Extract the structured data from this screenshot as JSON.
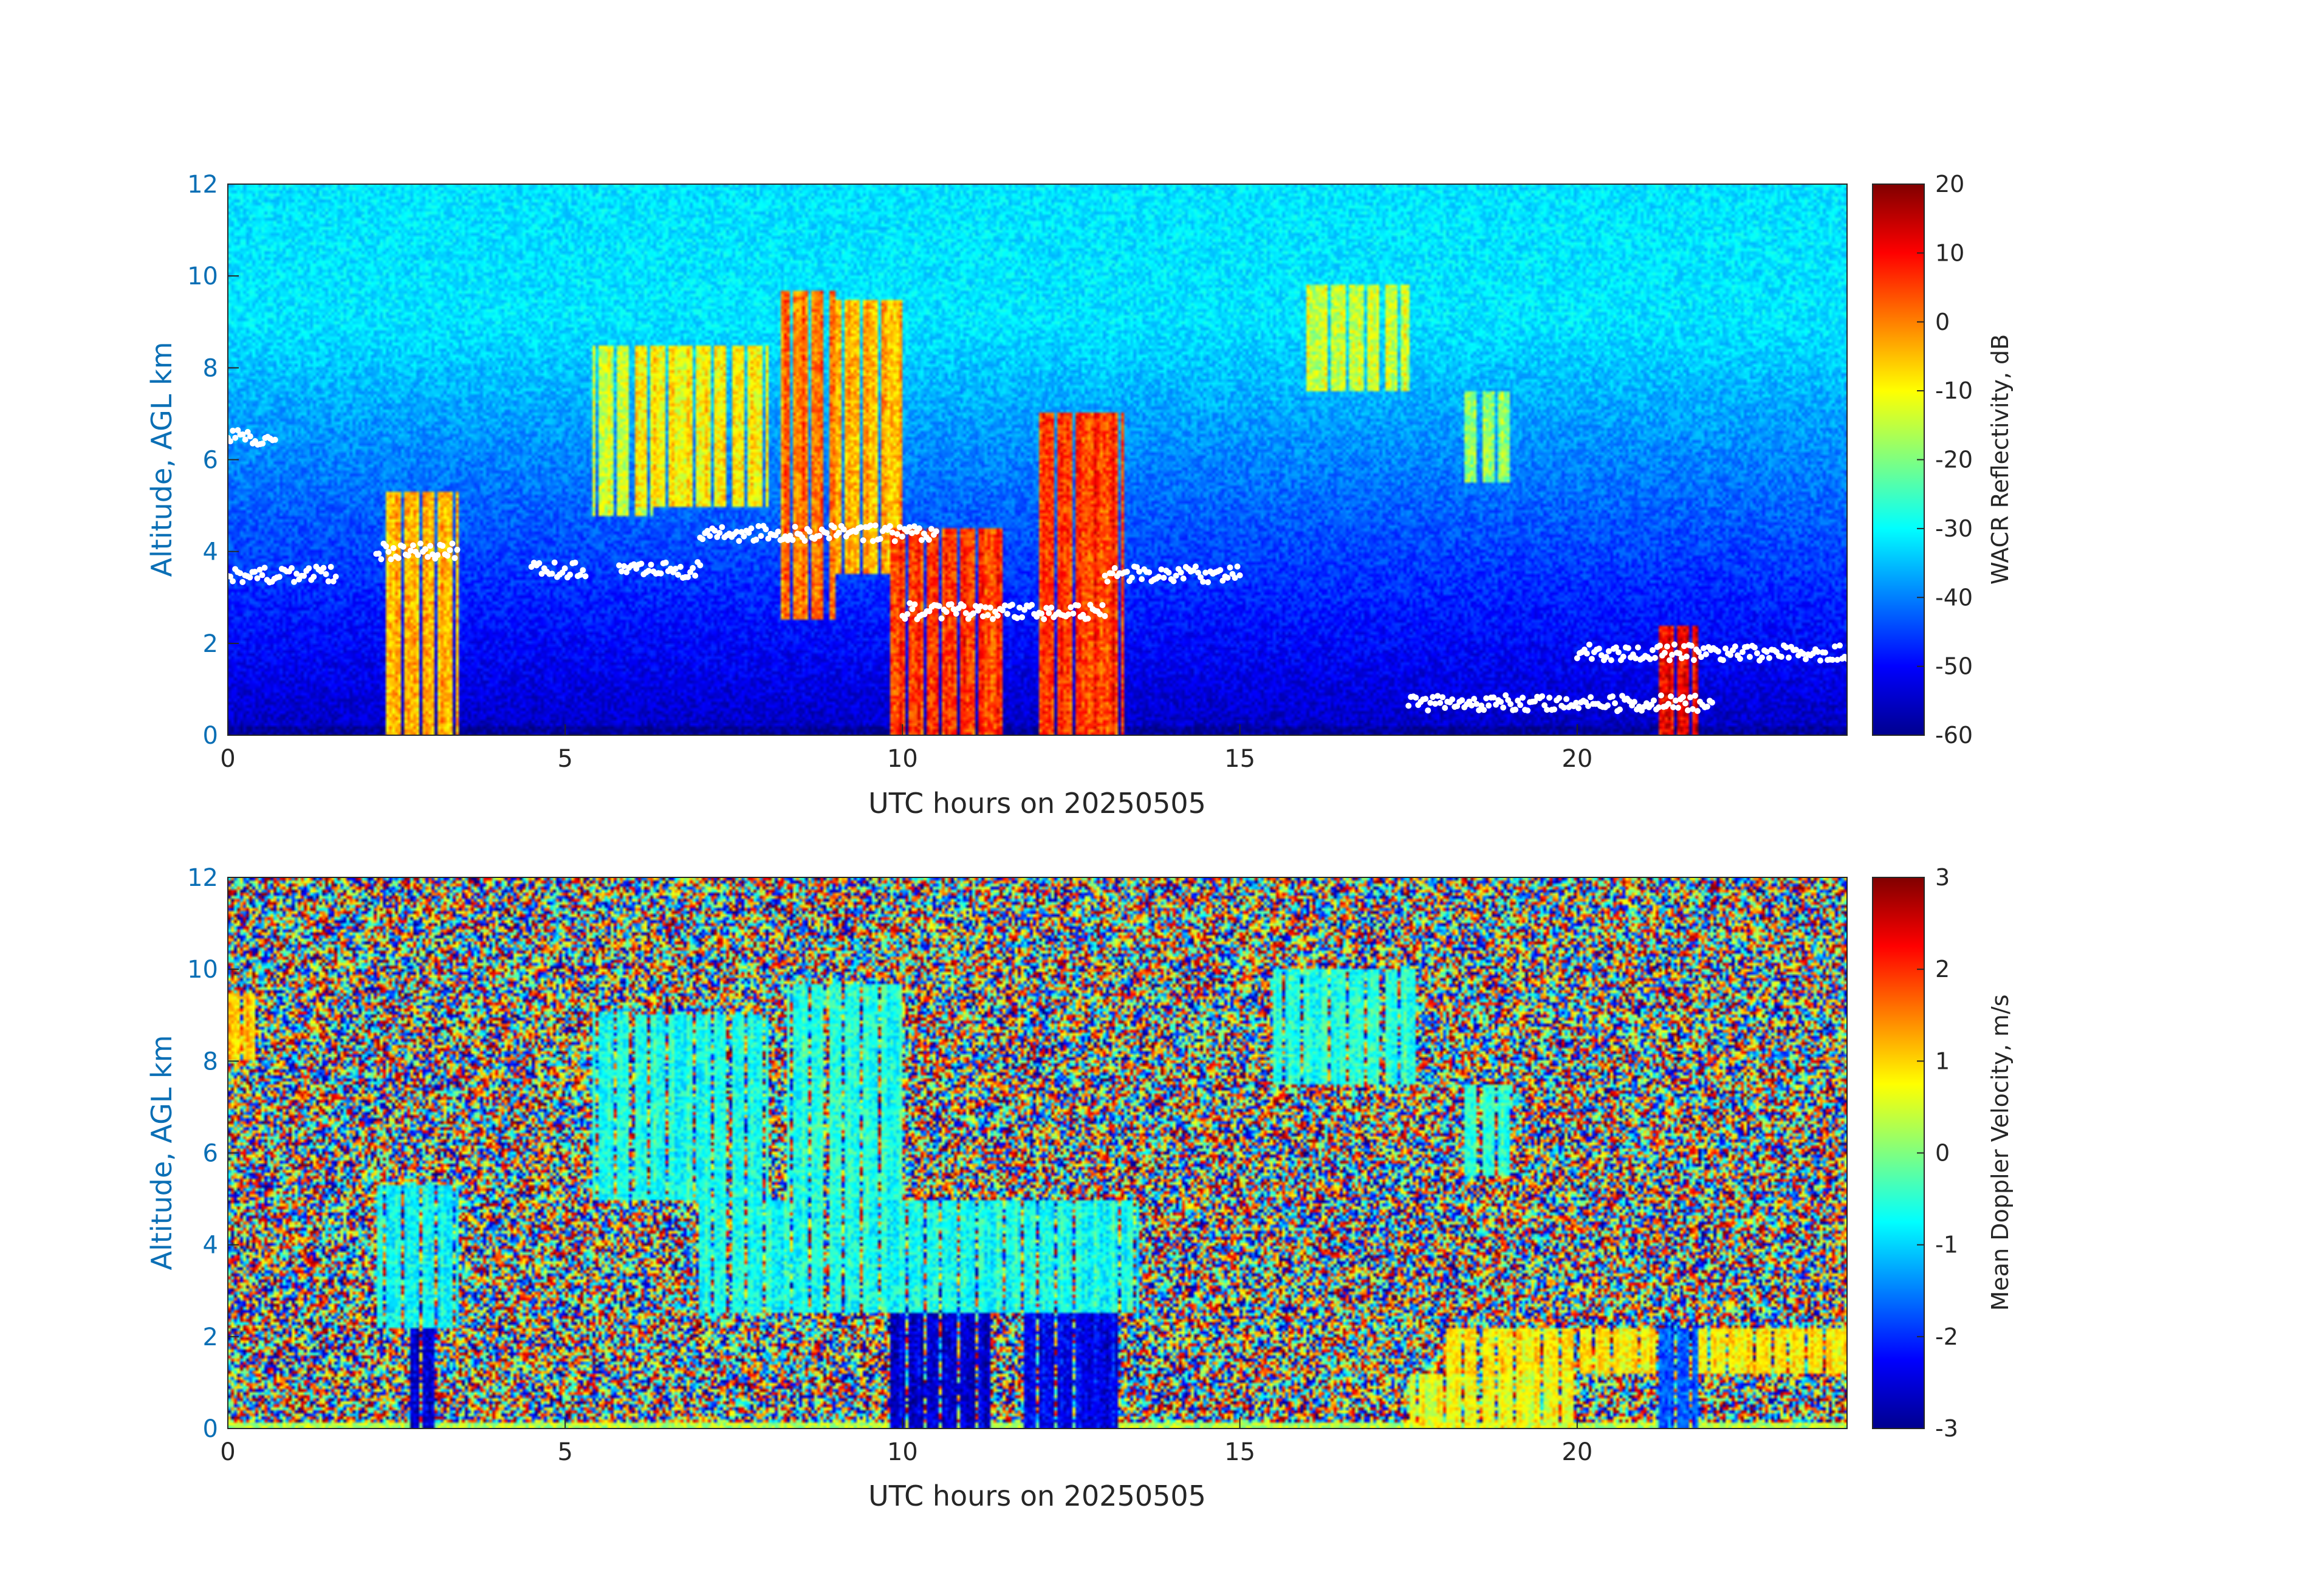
{
  "chart_data": [
    {
      "type": "heatmap",
      "panel": "top",
      "xlabel": "UTC hours on 20250505",
      "ylabel": "Altitude, AGL km",
      "xlim": [
        0,
        24
      ],
      "ylim": [
        0,
        12
      ],
      "xticks": [
        0,
        5,
        10,
        15,
        20
      ],
      "yticks": [
        0,
        2,
        4,
        6,
        8,
        10,
        12
      ],
      "colorbar": {
        "label": "WACR Reflectivity, dB",
        "range": [
          -60,
          20
        ],
        "ticks": [
          -60,
          -50,
          -40,
          -30,
          -20,
          -10,
          0,
          10,
          20
        ],
        "colormap": "jet"
      },
      "background": "noise: about -55 dB near the surface, rising to about -30 dB above 8 km",
      "cloud_features": [
        {
          "x0": 2.3,
          "x1": 3.4,
          "y0": 0.0,
          "y1": 5.3,
          "value": -5
        },
        {
          "x0": 5.4,
          "x1": 6.3,
          "y0": 4.8,
          "y1": 8.5,
          "value": -15
        },
        {
          "x0": 6.0,
          "x1": 8.0,
          "y0": 5.0,
          "y1": 8.5,
          "value": -10
        },
        {
          "x0": 8.2,
          "x1": 9.0,
          "y0": 2.5,
          "y1": 9.7,
          "value": 0
        },
        {
          "x0": 9.0,
          "x1": 10.0,
          "y0": 3.5,
          "y1": 9.5,
          "value": -5
        },
        {
          "x0": 9.8,
          "x1": 11.5,
          "y0": 0.0,
          "y1": 4.5,
          "value": 5
        },
        {
          "x0": 12.0,
          "x1": 13.3,
          "y0": 0.0,
          "y1": 7.0,
          "value": 5
        },
        {
          "x0": 16.0,
          "x1": 17.5,
          "y0": 7.5,
          "y1": 9.8,
          "value": -15
        },
        {
          "x0": 18.3,
          "x1": 19.0,
          "y0": 5.5,
          "y1": 7.5,
          "value": -20
        },
        {
          "x0": 21.2,
          "x1": 21.8,
          "y0": 0.0,
          "y1": 2.4,
          "value": 10
        }
      ],
      "overlay_points": {
        "color": "#ffffff",
        "description": "white cloud-base markers",
        "segments": [
          {
            "x0": 0.0,
            "x1": 1.6,
            "y": 3.5
          },
          {
            "x0": 0.0,
            "x1": 0.7,
            "y": 6.5
          },
          {
            "x0": 2.2,
            "x1": 3.4,
            "y": 4.0
          },
          {
            "x0": 4.5,
            "x1": 5.3,
            "y": 3.6
          },
          {
            "x0": 5.8,
            "x1": 7.0,
            "y": 3.6
          },
          {
            "x0": 7.0,
            "x1": 10.5,
            "y": 4.4
          },
          {
            "x0": 10.0,
            "x1": 13.0,
            "y": 2.7
          },
          {
            "x0": 13.0,
            "x1": 15.0,
            "y": 3.5
          },
          {
            "x0": 17.5,
            "x1": 22.0,
            "y": 0.7
          },
          {
            "x0": 20.0,
            "x1": 24.0,
            "y": 1.8
          }
        ]
      }
    },
    {
      "type": "heatmap",
      "panel": "bottom",
      "xlabel": "UTC hours on 20250505",
      "ylabel": "Altitude, AGL km",
      "xlim": [
        0,
        24
      ],
      "ylim": [
        0,
        12
      ],
      "xticks": [
        0,
        5,
        10,
        15,
        20
      ],
      "yticks": [
        0,
        2,
        4,
        6,
        8,
        10,
        12
      ],
      "colorbar": {
        "label": "Mean Doppler Velocity, m/s",
        "range": [
          -3,
          3
        ],
        "ticks": [
          -3,
          -2,
          -1,
          0,
          1,
          2,
          3
        ],
        "colormap": "jet"
      },
      "background": "random noise over the full -3 to 3 m/s range",
      "cloud_features": [
        {
          "x0": 2.2,
          "x1": 3.4,
          "y0": 2.2,
          "y1": 5.3,
          "value": -0.8
        },
        {
          "x0": 2.7,
          "x1": 3.1,
          "y0": 0.0,
          "y1": 2.2,
          "value": -2.6
        },
        {
          "x0": 0.0,
          "x1": 0.4,
          "y0": 8.0,
          "y1": 9.5,
          "value": 1.0
        },
        {
          "x0": 5.4,
          "x1": 8.0,
          "y0": 5.0,
          "y1": 9.0,
          "value": -0.7
        },
        {
          "x0": 7.0,
          "x1": 13.5,
          "y0": 2.5,
          "y1": 5.0,
          "value": -0.7
        },
        {
          "x0": 8.3,
          "x1": 10.0,
          "y0": 5.0,
          "y1": 9.7,
          "value": -0.6
        },
        {
          "x0": 9.8,
          "x1": 11.3,
          "y0": 0.0,
          "y1": 2.5,
          "value": -2.6
        },
        {
          "x0": 11.8,
          "x1": 13.2,
          "y0": 0.0,
          "y1": 2.5,
          "value": -2.4
        },
        {
          "x0": 15.5,
          "x1": 17.6,
          "y0": 7.5,
          "y1": 10.0,
          "value": -0.6
        },
        {
          "x0": 18.3,
          "x1": 19.0,
          "y0": 5.5,
          "y1": 7.5,
          "value": -0.6
        },
        {
          "x0": 18.0,
          "x1": 24.0,
          "y0": 1.2,
          "y1": 2.2,
          "value": 0.8
        },
        {
          "x0": 17.5,
          "x1": 20.0,
          "y0": 0.0,
          "y1": 1.2,
          "value": 0.6
        },
        {
          "x0": 21.2,
          "x1": 21.8,
          "y0": 0.0,
          "y1": 2.2,
          "value": -1.8
        }
      ]
    }
  ]
}
